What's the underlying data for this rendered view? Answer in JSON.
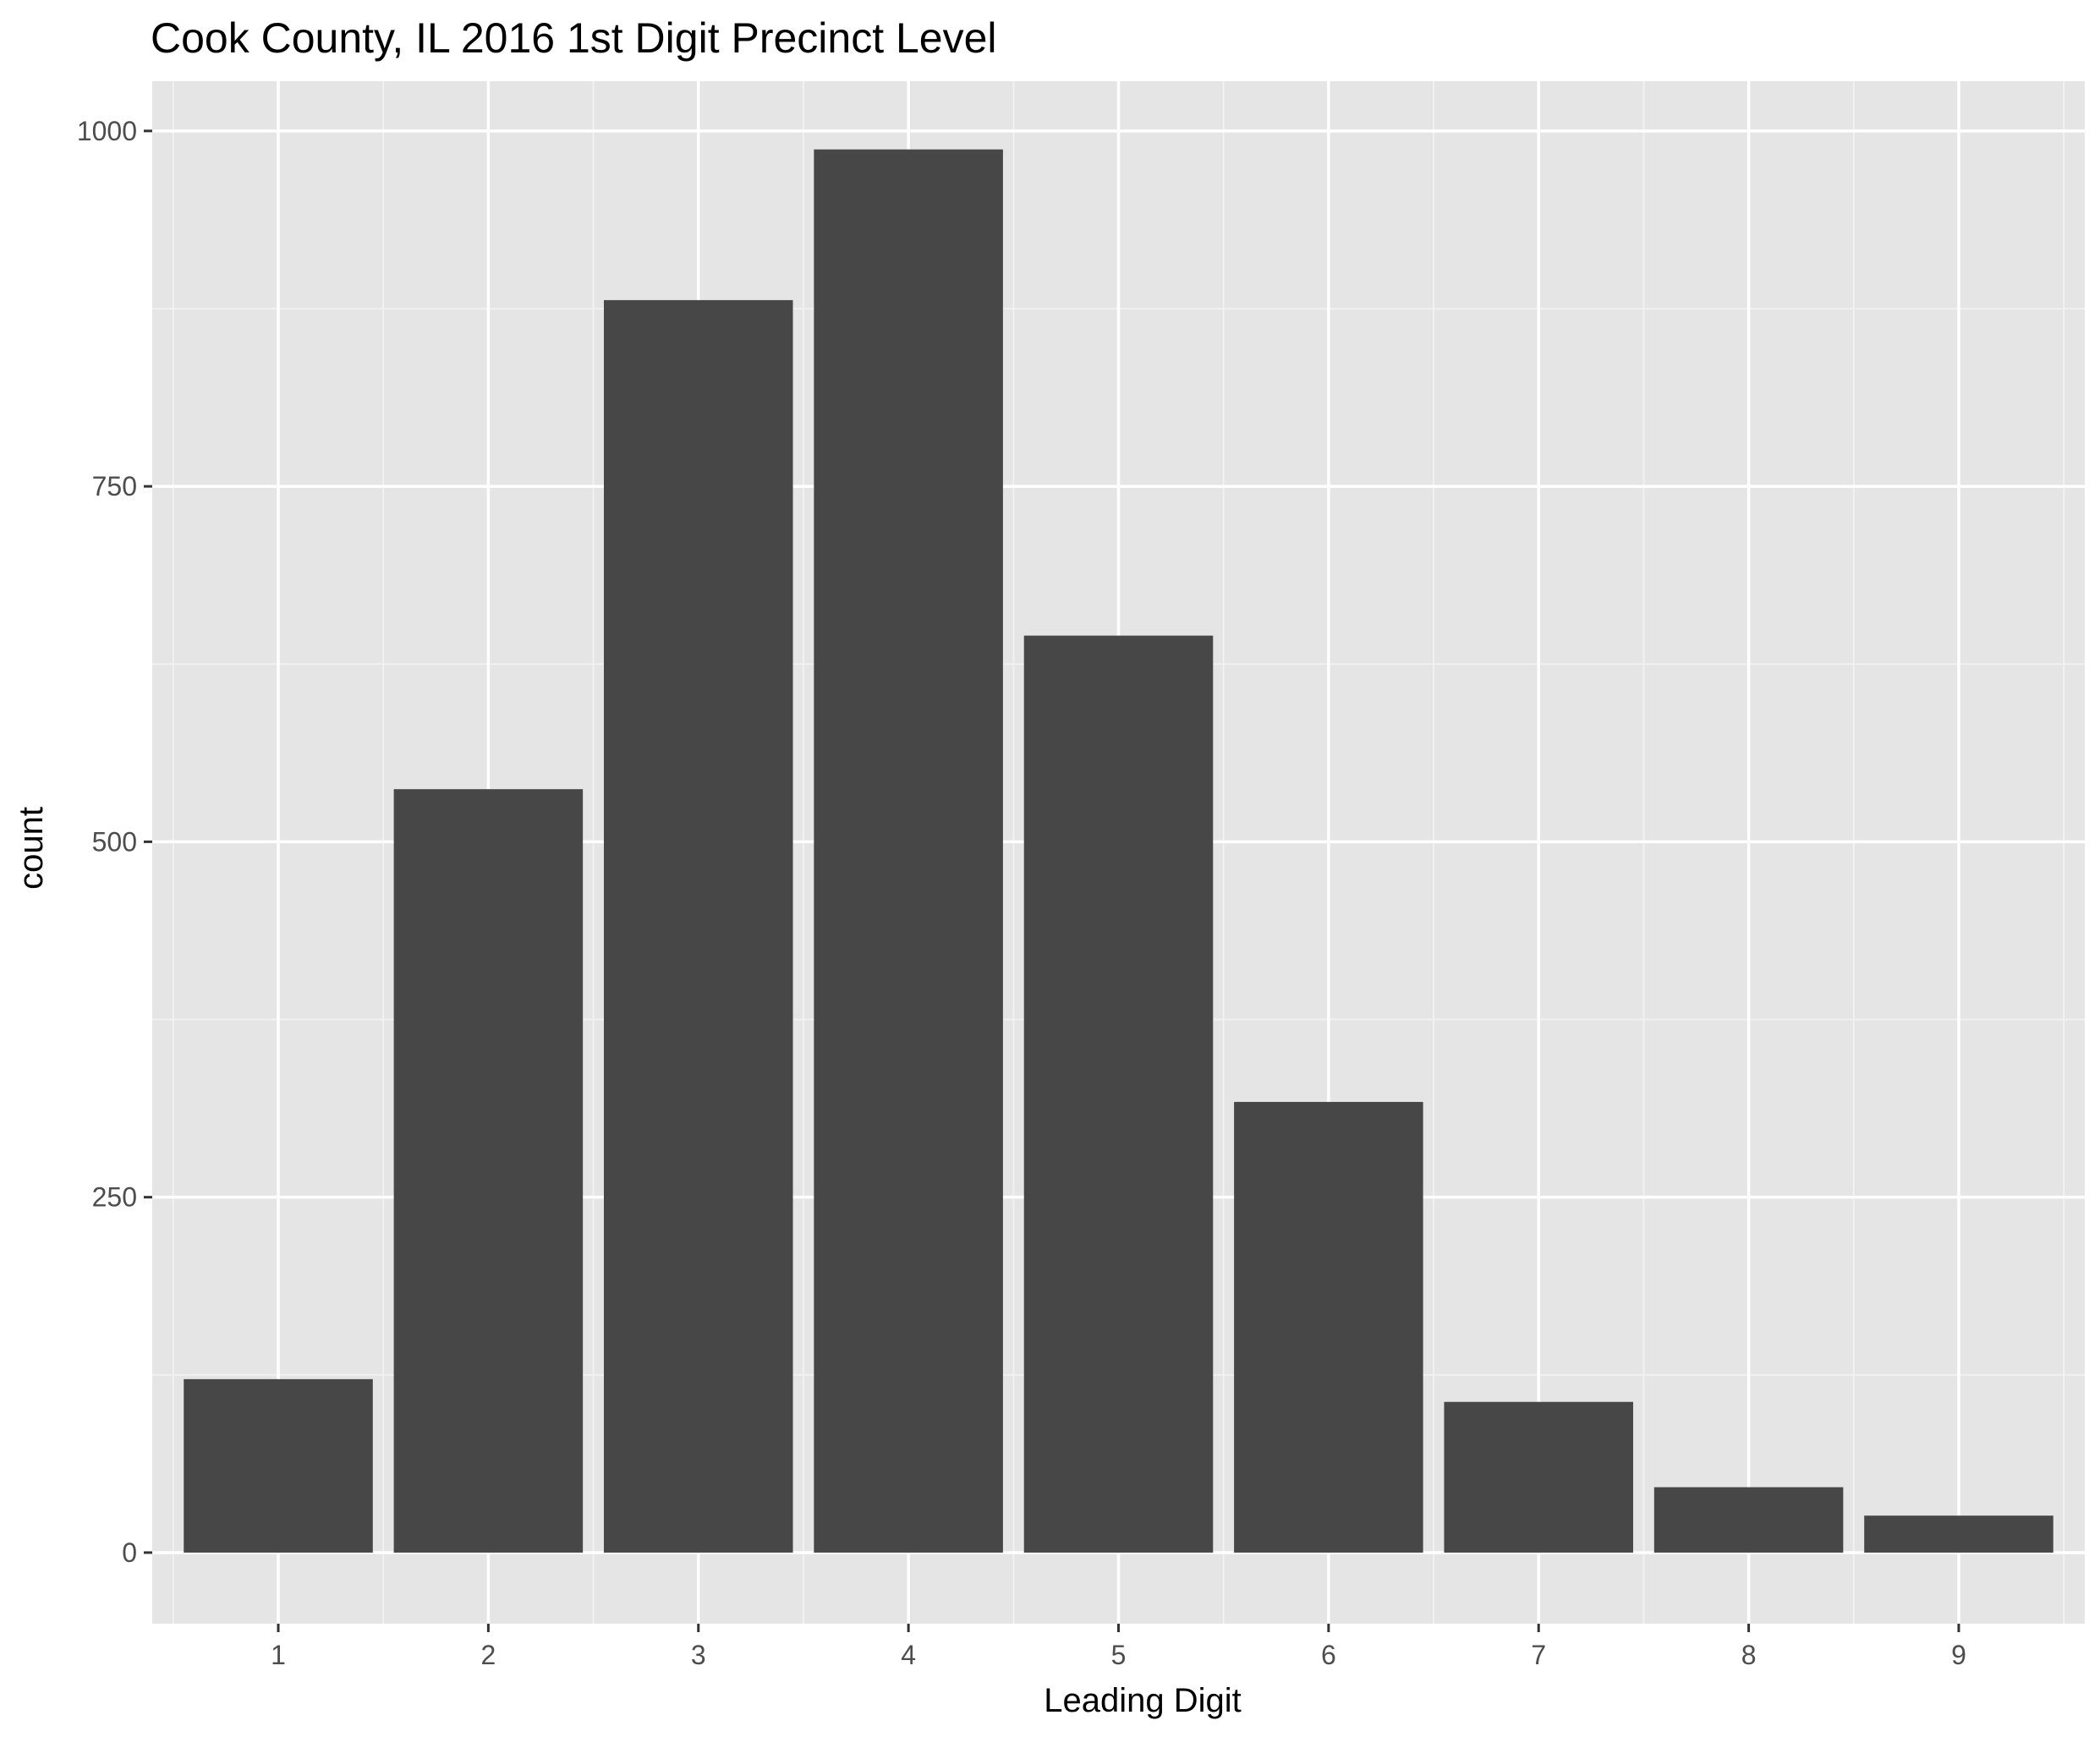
{
  "chart_data": {
    "type": "bar",
    "title": "Cook County, IL 2016 1st Digit Precinct Level",
    "xlabel": "Leading Digit",
    "ylabel": "count",
    "categories": [
      "1",
      "2",
      "3",
      "4",
      "5",
      "6",
      "7",
      "8",
      "9"
    ],
    "values": [
      122,
      537,
      881,
      987,
      645,
      317,
      106,
      46,
      26
    ],
    "ylim": [
      -50,
      1035
    ],
    "yticks": [
      0,
      250,
      500,
      750,
      1000
    ],
    "grid": true,
    "legend": "none",
    "colors": {
      "bar": "#474747",
      "panel": "#e5e5e5",
      "grid": "#ffffff"
    }
  }
}
